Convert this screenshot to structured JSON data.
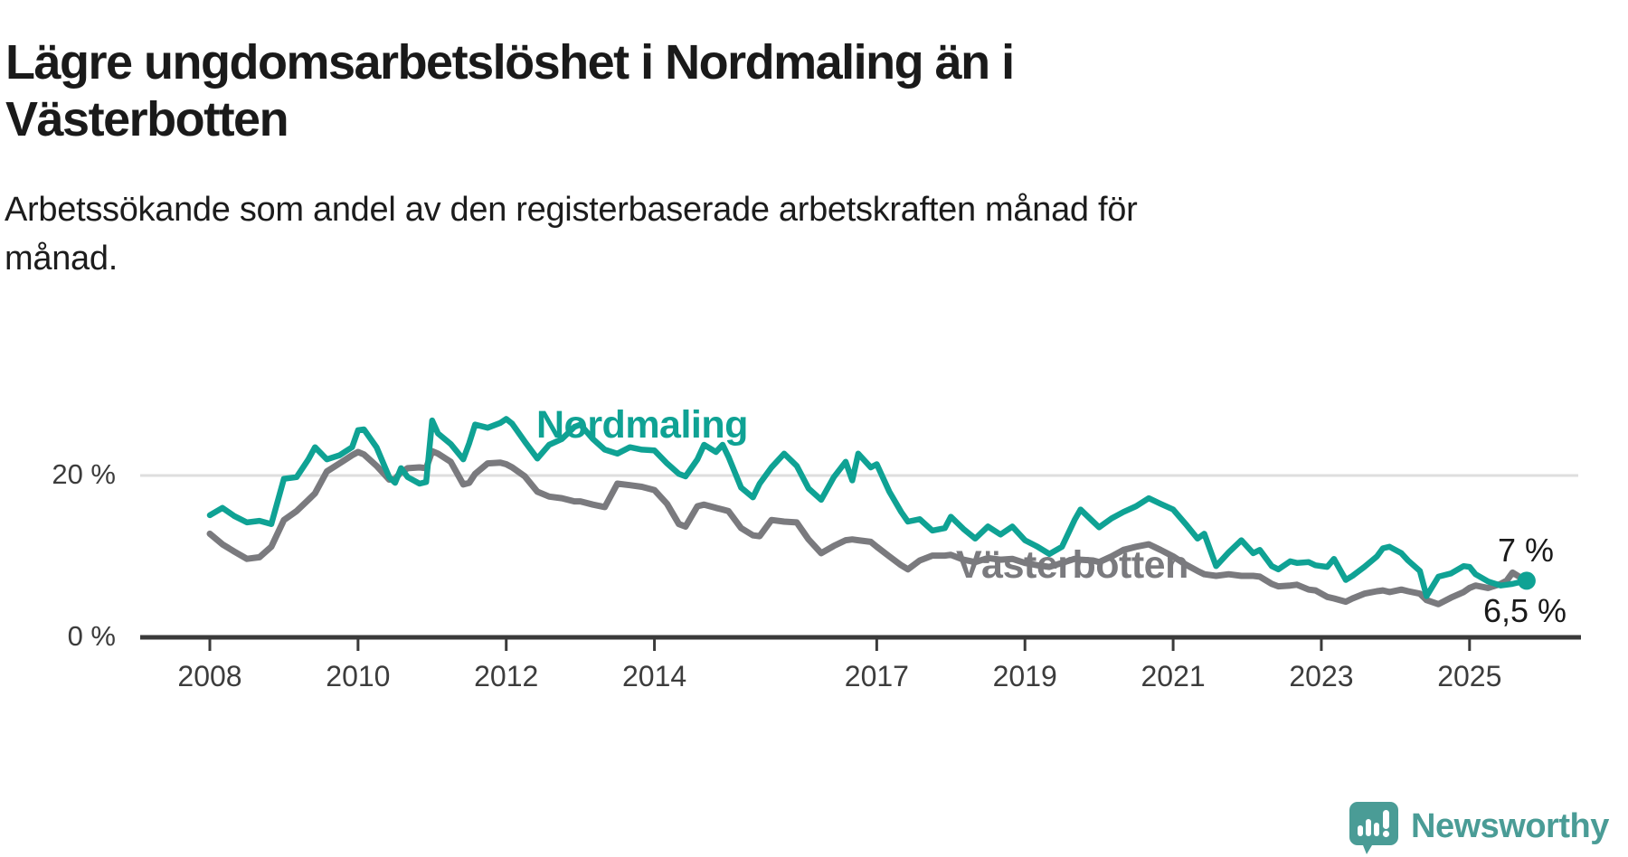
{
  "title": {
    "full": "Lägre ungdomsarbetslöshet i Nordmaling än i Västerbotten",
    "line1": "Lägre ungdomsarbetslöshet i Nordmaling än i",
    "line2": "Västerbotten"
  },
  "subtitle": {
    "full": "Arbetssökande som andel av den registerbaserade arbetskraften månad för månad.",
    "line1": "Arbetssökande som andel av den registerbaserade arbetskraften månad för",
    "line2": "månad."
  },
  "colors": {
    "nordmaling": "#0fa294",
    "vasterbotten": "#7a7a7e",
    "grid": "#dedede",
    "axis": "#3a3a3a",
    "tick_text": "#3c3c3c",
    "value_text": "#1a1a1a",
    "brand": "#4a9c96",
    "background": "#ffffff"
  },
  "branding": {
    "wordmark": "Newsworthy",
    "icon": "newsworthy-chart-bubble-icon"
  },
  "chart_data": {
    "type": "line",
    "unit": "%",
    "frequency": "monthly",
    "title": "Lägre ungdomsarbetslöshet i Nordmaling än i Västerbotten",
    "subtitle": "Arbetssökande som andel av den registerbaserade arbetskraften månad för månad.",
    "xlim": [
      2007.05,
      2026.5
    ],
    "ylim": [
      0,
      35
    ],
    "grid": "single horizontal gridline at 20 %",
    "legend": "inline labels next to lines",
    "xticks": {
      "years": [
        2008,
        2010,
        2012,
        2014,
        2017,
        2019,
        2021,
        2023,
        2025
      ],
      "labels": [
        "2008",
        "2010",
        "2012",
        "2014",
        "2017",
        "2019",
        "2021",
        "2023",
        "2025"
      ]
    },
    "yticks": [
      {
        "value": 0,
        "label": "0 %"
      },
      {
        "value": 20,
        "label": "20 %"
      }
    ],
    "x": [
      2008.0,
      2008.17,
      2008.33,
      2008.5,
      2008.67,
      2008.83,
      2009.0,
      2009.17,
      2009.33,
      2009.42,
      2009.58,
      2009.75,
      2009.92,
      2010.0,
      2010.08,
      2010.25,
      2010.42,
      2010.5,
      2010.58,
      2010.67,
      2010.83,
      2010.92,
      2011.0,
      2011.08,
      2011.25,
      2011.42,
      2011.5,
      2011.58,
      2011.75,
      2011.92,
      2012.0,
      2012.08,
      2012.25,
      2012.42,
      2012.58,
      2012.75,
      2012.92,
      2013.0,
      2013.17,
      2013.33,
      2013.5,
      2013.67,
      2013.83,
      2014.0,
      2014.17,
      2014.33,
      2014.42,
      2014.58,
      2014.67,
      2014.83,
      2014.92,
      2015.0,
      2015.17,
      2015.33,
      2015.42,
      2015.58,
      2015.75,
      2015.92,
      2016.08,
      2016.25,
      2016.42,
      2016.58,
      2016.67,
      2016.75,
      2016.92,
      2017.0,
      2017.17,
      2017.33,
      2017.42,
      2017.58,
      2017.75,
      2017.92,
      2018.0,
      2018.17,
      2018.33,
      2018.5,
      2018.67,
      2018.83,
      2019.0,
      2019.17,
      2019.33,
      2019.5,
      2019.67,
      2019.75,
      2019.92,
      2020.0,
      2020.17,
      2020.33,
      2020.5,
      2020.67,
      2020.83,
      2021.0,
      2021.17,
      2021.33,
      2021.42,
      2021.58,
      2021.75,
      2021.92,
      2022.08,
      2022.17,
      2022.33,
      2022.42,
      2022.58,
      2022.67,
      2022.83,
      2022.92,
      2023.08,
      2023.17,
      2023.33,
      2023.42,
      2023.58,
      2023.75,
      2023.83,
      2023.92,
      2024.08,
      2024.17,
      2024.33,
      2024.42,
      2024.58,
      2024.75,
      2024.92,
      2025.0,
      2025.08,
      2025.25,
      2025.42,
      2025.5,
      2025.58,
      2025.67,
      2025.77
    ],
    "series": [
      {
        "name": "Nordmaling",
        "color": "#0fa294",
        "end_label": "7 %",
        "end_value": 7.0,
        "end_dot": true,
        "values": [
          15.1,
          16.0,
          15.0,
          14.2,
          14.4,
          14.0,
          19.6,
          19.8,
          22.0,
          23.5,
          22.0,
          22.5,
          23.5,
          25.6,
          25.7,
          23.5,
          19.8,
          19.1,
          20.9,
          19.8,
          19.0,
          19.2,
          26.8,
          25.2,
          23.9,
          22.0,
          24.0,
          26.3,
          25.9,
          26.5,
          27.0,
          26.4,
          24.2,
          22.1,
          23.8,
          24.5,
          26.0,
          26.3,
          24.5,
          23.2,
          22.7,
          23.5,
          23.2,
          23.1,
          21.5,
          20.2,
          19.9,
          22.0,
          23.8,
          22.9,
          23.8,
          22.3,
          18.5,
          17.3,
          19.0,
          21.0,
          22.7,
          21.2,
          18.4,
          17.0,
          19.8,
          21.7,
          19.4,
          22.7,
          21.0,
          21.4,
          18.0,
          15.5,
          14.3,
          14.6,
          13.2,
          13.5,
          14.9,
          13.4,
          12.2,
          13.7,
          12.7,
          13.7,
          12.0,
          11.2,
          10.3,
          11.2,
          14.5,
          15.8,
          14.3,
          13.6,
          14.7,
          15.5,
          16.2,
          17.2,
          16.5,
          15.8,
          14.0,
          12.2,
          12.8,
          8.8,
          10.5,
          12.0,
          10.4,
          10.8,
          8.8,
          8.4,
          9.4,
          9.2,
          9.3,
          8.9,
          8.7,
          9.7,
          7.1,
          7.6,
          8.7,
          10.0,
          11.0,
          11.2,
          10.4,
          9.5,
          8.2,
          5.1,
          7.5,
          7.9,
          8.8,
          8.7,
          7.8,
          6.9,
          6.4,
          6.5,
          6.6,
          6.8,
          7.0
        ]
      },
      {
        "name": "Västerbotten",
        "color": "#7a7a7e",
        "end_label": "6,5 %",
        "end_value": 6.5,
        "end_dot": false,
        "values": [
          12.8,
          11.5,
          10.6,
          9.7,
          9.9,
          11.2,
          14.5,
          15.6,
          17.0,
          17.8,
          20.5,
          21.5,
          22.5,
          22.9,
          22.6,
          21.2,
          19.5,
          19.6,
          20.4,
          20.9,
          21.0,
          20.9,
          23.0,
          22.7,
          21.7,
          18.9,
          19.1,
          20.2,
          21.5,
          21.6,
          21.4,
          21.0,
          19.9,
          18.0,
          17.4,
          17.2,
          16.8,
          16.8,
          16.4,
          16.1,
          19.0,
          18.8,
          18.6,
          18.2,
          16.5,
          14.0,
          13.7,
          16.2,
          16.4,
          16.0,
          15.8,
          15.6,
          13.5,
          12.6,
          12.5,
          14.5,
          14.3,
          14.2,
          12.1,
          10.4,
          11.3,
          12.0,
          12.1,
          12.0,
          11.8,
          11.2,
          10.0,
          8.9,
          8.4,
          9.5,
          10.1,
          10.1,
          10.2,
          9.6,
          9.3,
          9.8,
          9.6,
          9.7,
          9.2,
          8.9,
          8.7,
          9.2,
          9.7,
          9.6,
          9.5,
          9.3,
          10.0,
          10.8,
          11.2,
          11.5,
          10.8,
          10.0,
          9.0,
          8.2,
          7.8,
          7.6,
          7.8,
          7.6,
          7.6,
          7.5,
          6.6,
          6.3,
          6.4,
          6.5,
          5.9,
          5.8,
          5.0,
          4.8,
          4.4,
          4.8,
          5.4,
          5.7,
          5.8,
          5.6,
          5.9,
          5.7,
          5.4,
          4.6,
          4.1,
          4.9,
          5.6,
          6.1,
          6.4,
          6.1,
          6.6,
          7.0,
          8.0,
          7.5,
          6.5
        ]
      }
    ]
  }
}
